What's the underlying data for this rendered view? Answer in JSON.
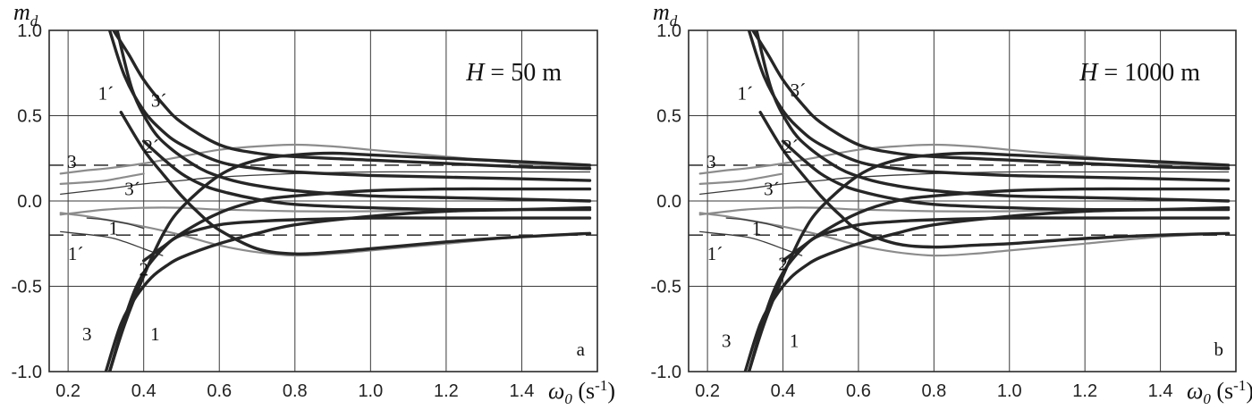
{
  "chart_data": [
    {
      "type": "line",
      "panel_label": "a",
      "annotation": {
        "symbol": "H",
        "text": " = 50 m"
      },
      "ylabel": {
        "main": "m",
        "sub": "d"
      },
      "xlabel": {
        "main": "ω",
        "sub": "0",
        "unit": " (s",
        "sup": "-1",
        "close": ")"
      },
      "xlim": [
        0.15,
        1.6
      ],
      "ylim": [
        -1.0,
        1.0
      ],
      "xticks": [
        "0.2",
        "0.4",
        "0.6",
        "0.8",
        "1.0",
        "1.2",
        "1.4"
      ],
      "yticks": [
        "1.0",
        "0.5",
        "0.0",
        "-0.5",
        "-1.0"
      ],
      "grid": true,
      "reference_lines": [
        0.21,
        -0.2
      ],
      "curve_labels": [
        {
          "text": "1´",
          "x": 0.3,
          "y": 0.63
        },
        {
          "text": "3´",
          "x": 0.44,
          "y": 0.59
        },
        {
          "text": "2´",
          "x": 0.42,
          "y": 0.32
        },
        {
          "text": "3",
          "x": 0.21,
          "y": 0.23
        },
        {
          "text": "3´",
          "x": 0.37,
          "y": 0.07
        },
        {
          "text": "1",
          "x": 0.32,
          "y": -0.16
        },
        {
          "text": "1´",
          "x": 0.22,
          "y": -0.31
        },
        {
          "text": "2",
          "x": 0.4,
          "y": -0.4
        },
        {
          "text": "3",
          "x": 0.25,
          "y": -0.78
        },
        {
          "text": "1",
          "x": 0.43,
          "y": -0.78
        }
      ],
      "series": [
        {
          "style": "thick",
          "x": [
            0.32,
            0.36,
            0.4,
            0.45,
            0.5,
            0.6,
            0.7,
            0.8,
            1.0,
            1.2,
            1.4,
            1.58
          ],
          "y": [
            1.0,
            0.86,
            0.71,
            0.57,
            0.46,
            0.33,
            0.28,
            0.26,
            0.24,
            0.22,
            0.2,
            0.19
          ]
        },
        {
          "style": "thick",
          "x": [
            0.31,
            0.35,
            0.4,
            0.45,
            0.5,
            0.6,
            0.7,
            0.8,
            1.0,
            1.2,
            1.4,
            1.58
          ],
          "y": [
            1.0,
            0.73,
            0.53,
            0.41,
            0.33,
            0.23,
            0.19,
            0.17,
            0.15,
            0.14,
            0.13,
            0.12
          ]
        },
        {
          "style": "thick",
          "x": [
            0.33,
            0.37,
            0.42,
            0.47,
            0.55,
            0.62,
            0.7,
            0.8,
            1.0,
            1.2,
            1.4,
            1.58
          ],
          "y": [
            1.0,
            0.65,
            0.43,
            0.31,
            0.19,
            0.13,
            0.09,
            0.06,
            0.03,
            0.02,
            0.01,
            0.0
          ]
        },
        {
          "style": "thick",
          "x": [
            0.31,
            0.35,
            0.4,
            0.45,
            0.5,
            0.6,
            0.7,
            0.8,
            0.9,
            1.0,
            1.2,
            1.4,
            1.58
          ],
          "y": [
            -1.0,
            -0.72,
            -0.44,
            -0.2,
            -0.04,
            0.15,
            0.24,
            0.27,
            0.28,
            0.27,
            0.25,
            0.23,
            0.21
          ]
        },
        {
          "style": "thick",
          "x": [
            0.31,
            0.36,
            0.4,
            0.45,
            0.5,
            0.6,
            0.7,
            0.8,
            1.0,
            1.2,
            1.4,
            1.58
          ],
          "y": [
            -1.0,
            -0.62,
            -0.42,
            -0.28,
            -0.19,
            -0.07,
            0.0,
            0.03,
            0.06,
            0.07,
            0.07,
            0.07
          ]
        },
        {
          "style": "thick",
          "x": [
            0.3,
            0.34,
            0.38,
            0.42,
            0.46,
            0.5,
            0.6,
            0.7,
            0.8,
            1.0,
            1.2,
            1.4,
            1.58
          ],
          "y": [
            -1.0,
            -0.72,
            -0.56,
            -0.45,
            -0.38,
            -0.33,
            -0.25,
            -0.19,
            -0.14,
            -0.09,
            -0.06,
            -0.05,
            -0.04
          ]
        },
        {
          "style": "thick",
          "x": [
            0.34,
            0.4,
            0.45,
            0.5,
            0.55,
            0.6,
            0.7,
            0.8,
            0.9,
            1.0,
            1.2,
            1.4,
            1.58
          ],
          "y": [
            0.52,
            0.3,
            0.16,
            0.03,
            -0.08,
            -0.17,
            -0.28,
            -0.31,
            -0.3,
            -0.28,
            -0.24,
            -0.21,
            -0.19
          ]
        },
        {
          "style": "thick",
          "x": [
            0.4,
            0.45,
            0.5,
            0.55,
            0.6,
            0.7,
            0.8,
            1.0,
            1.2,
            1.4,
            1.58
          ],
          "y": [
            0.35,
            0.25,
            0.16,
            0.1,
            0.06,
            0.01,
            -0.02,
            -0.04,
            -0.05,
            -0.05,
            -0.05
          ]
        },
        {
          "style": "thick",
          "x": [
            0.4,
            0.45,
            0.5,
            0.6,
            0.7,
            0.8,
            1.0,
            1.2,
            1.4,
            1.58
          ],
          "y": [
            -0.35,
            -0.27,
            -0.2,
            -0.14,
            -0.12,
            -0.11,
            -0.1,
            -0.1,
            -0.1,
            -0.1
          ]
        },
        {
          "style": "gray",
          "x": [
            0.18,
            0.25,
            0.3,
            0.4,
            0.5,
            0.6,
            0.7,
            0.8,
            0.9,
            1.0,
            1.2,
            1.4,
            1.58
          ],
          "y": [
            0.16,
            0.18,
            0.19,
            0.22,
            0.26,
            0.3,
            0.32,
            0.33,
            0.32,
            0.3,
            0.26,
            0.22,
            0.2
          ]
        },
        {
          "style": "gray",
          "x": [
            0.18,
            0.25,
            0.3,
            0.4,
            0.5,
            0.6,
            0.7,
            0.8,
            0.9,
            1.0,
            1.2,
            1.4,
            1.58
          ],
          "y": [
            -0.07,
            -0.09,
            -0.11,
            -0.15,
            -0.2,
            -0.26,
            -0.3,
            -0.32,
            -0.31,
            -0.29,
            -0.25,
            -0.21,
            -0.19
          ]
        },
        {
          "style": "gray",
          "x": [
            0.18,
            0.3,
            0.4,
            0.5,
            0.6,
            0.8,
            1.0,
            1.2,
            1.4,
            1.58
          ],
          "y": [
            -0.08,
            -0.05,
            -0.04,
            -0.04,
            -0.05,
            -0.06,
            -0.06,
            -0.05,
            -0.05,
            -0.05
          ]
        },
        {
          "style": "gray",
          "x": [
            0.18,
            0.25,
            0.3,
            0.35,
            0.4
          ],
          "y": [
            0.1,
            0.11,
            0.12,
            0.14,
            0.16
          ]
        },
        {
          "style": "thin",
          "x": [
            0.18,
            0.3,
            0.4,
            0.5,
            0.6,
            0.8,
            1.0,
            1.2,
            1.4,
            1.58
          ],
          "y": [
            0.04,
            0.07,
            0.1,
            0.12,
            0.14,
            0.16,
            0.17,
            0.17,
            0.17,
            0.17
          ]
        },
        {
          "style": "thin",
          "x": [
            0.18,
            0.3,
            0.35,
            0.4,
            0.45
          ],
          "y": [
            -0.18,
            -0.21,
            -0.24,
            -0.28,
            -0.32
          ]
        },
        {
          "style": "thin",
          "x": [
            0.25,
            0.3,
            0.35,
            0.4
          ],
          "y": [
            -0.1,
            -0.11,
            -0.13,
            -0.16
          ]
        }
      ]
    },
    {
      "type": "line",
      "panel_label": "b",
      "annotation": {
        "symbol": "H",
        "text": " = 1000 m"
      },
      "ylabel": {
        "main": "m",
        "sub": "d"
      },
      "xlabel": {
        "main": "ω",
        "sub": "0",
        "unit": " (s",
        "sup": "-1",
        "close": ")"
      },
      "xlim": [
        0.15,
        1.6
      ],
      "ylim": [
        -1.0,
        1.0
      ],
      "xticks": [
        "0.2",
        "0.4",
        "0.6",
        "0.8",
        "1.0",
        "1.2",
        "1.4"
      ],
      "yticks": [
        "1.0",
        "0.5",
        "0.0",
        "-0.5",
        "-1.0"
      ],
      "grid": true,
      "reference_lines": [
        0.21,
        -0.2
      ],
      "curve_labels": [
        {
          "text": "1´",
          "x": 0.3,
          "y": 0.63
        },
        {
          "text": "3´",
          "x": 0.44,
          "y": 0.65
        },
        {
          "text": "2´",
          "x": 0.42,
          "y": 0.32
        },
        {
          "text": "3",
          "x": 0.21,
          "y": 0.23
        },
        {
          "text": "3´",
          "x": 0.37,
          "y": 0.07
        },
        {
          "text": "1",
          "x": 0.33,
          "y": -0.16
        },
        {
          "text": "1´",
          "x": 0.22,
          "y": -0.31
        },
        {
          "text": "2",
          "x": 0.4,
          "y": -0.37
        },
        {
          "text": "3",
          "x": 0.25,
          "y": -0.82
        },
        {
          "text": "1",
          "x": 0.43,
          "y": -0.82
        }
      ],
      "series": [
        {
          "style": "thick",
          "x": [
            0.32,
            0.36,
            0.4,
            0.45,
            0.5,
            0.6,
            0.7,
            0.8,
            1.0,
            1.2,
            1.4,
            1.58
          ],
          "y": [
            1.0,
            0.86,
            0.71,
            0.57,
            0.46,
            0.33,
            0.28,
            0.26,
            0.24,
            0.22,
            0.2,
            0.19
          ]
        },
        {
          "style": "thick",
          "x": [
            0.31,
            0.35,
            0.4,
            0.45,
            0.5,
            0.6,
            0.7,
            0.8,
            1.0,
            1.2,
            1.4,
            1.58
          ],
          "y": [
            1.0,
            0.73,
            0.53,
            0.41,
            0.33,
            0.23,
            0.19,
            0.17,
            0.15,
            0.14,
            0.13,
            0.12
          ]
        },
        {
          "style": "thick",
          "x": [
            0.33,
            0.37,
            0.42,
            0.47,
            0.55,
            0.62,
            0.7,
            0.8,
            1.0,
            1.2,
            1.4,
            1.58
          ],
          "y": [
            1.0,
            0.65,
            0.43,
            0.31,
            0.19,
            0.13,
            0.09,
            0.06,
            0.03,
            0.02,
            0.01,
            0.0
          ]
        },
        {
          "style": "thick",
          "x": [
            0.31,
            0.35,
            0.4,
            0.45,
            0.5,
            0.6,
            0.7,
            0.8,
            0.9,
            1.0,
            1.2,
            1.4,
            1.58
          ],
          "y": [
            -1.0,
            -0.72,
            -0.44,
            -0.2,
            -0.04,
            0.15,
            0.24,
            0.27,
            0.28,
            0.27,
            0.25,
            0.23,
            0.21
          ]
        },
        {
          "style": "thick",
          "x": [
            0.31,
            0.36,
            0.4,
            0.45,
            0.5,
            0.6,
            0.7,
            0.8,
            1.0,
            1.2,
            1.4,
            1.58
          ],
          "y": [
            -1.0,
            -0.62,
            -0.42,
            -0.28,
            -0.19,
            -0.07,
            0.0,
            0.03,
            0.06,
            0.07,
            0.07,
            0.07
          ]
        },
        {
          "style": "thick",
          "x": [
            0.3,
            0.34,
            0.38,
            0.42,
            0.46,
            0.5,
            0.6,
            0.7,
            0.8,
            1.0,
            1.2,
            1.4,
            1.58
          ],
          "y": [
            -1.0,
            -0.72,
            -0.56,
            -0.45,
            -0.38,
            -0.33,
            -0.25,
            -0.19,
            -0.14,
            -0.09,
            -0.06,
            -0.05,
            -0.04
          ]
        },
        {
          "style": "thick",
          "x": [
            0.34,
            0.4,
            0.45,
            0.5,
            0.55,
            0.6,
            0.7,
            0.8,
            0.9,
            1.0,
            1.2,
            1.4,
            1.58
          ],
          "y": [
            0.52,
            0.3,
            0.16,
            0.03,
            -0.08,
            -0.17,
            -0.25,
            -0.27,
            -0.26,
            -0.25,
            -0.22,
            -0.2,
            -0.19
          ]
        },
        {
          "style": "thick",
          "x": [
            0.4,
            0.45,
            0.5,
            0.55,
            0.6,
            0.7,
            0.8,
            1.0,
            1.2,
            1.4,
            1.58
          ],
          "y": [
            0.35,
            0.25,
            0.16,
            0.1,
            0.06,
            0.01,
            -0.02,
            -0.04,
            -0.05,
            -0.05,
            -0.05
          ]
        },
        {
          "style": "thick",
          "x": [
            0.4,
            0.45,
            0.5,
            0.6,
            0.7,
            0.8,
            1.0,
            1.2,
            1.4,
            1.58
          ],
          "y": [
            -0.35,
            -0.27,
            -0.2,
            -0.14,
            -0.12,
            -0.11,
            -0.1,
            -0.1,
            -0.1,
            -0.1
          ]
        },
        {
          "style": "gray",
          "x": [
            0.18,
            0.25,
            0.3,
            0.4,
            0.5,
            0.6,
            0.7,
            0.8,
            0.9,
            1.0,
            1.2,
            1.4,
            1.58
          ],
          "y": [
            0.16,
            0.18,
            0.19,
            0.22,
            0.26,
            0.3,
            0.32,
            0.33,
            0.32,
            0.3,
            0.26,
            0.22,
            0.2
          ]
        },
        {
          "style": "gray",
          "x": [
            0.18,
            0.25,
            0.3,
            0.4,
            0.5,
            0.6,
            0.7,
            0.8,
            0.9,
            1.0,
            1.2,
            1.4,
            1.58
          ],
          "y": [
            -0.07,
            -0.09,
            -0.11,
            -0.15,
            -0.2,
            -0.26,
            -0.3,
            -0.32,
            -0.31,
            -0.29,
            -0.25,
            -0.21,
            -0.19
          ]
        },
        {
          "style": "gray",
          "x": [
            0.18,
            0.3,
            0.4,
            0.5,
            0.6,
            0.8,
            1.0,
            1.2,
            1.4,
            1.58
          ],
          "y": [
            -0.08,
            -0.05,
            -0.04,
            -0.04,
            -0.05,
            -0.06,
            -0.06,
            -0.05,
            -0.05,
            -0.05
          ]
        },
        {
          "style": "gray",
          "x": [
            0.18,
            0.25,
            0.3,
            0.35,
            0.4
          ],
          "y": [
            0.1,
            0.11,
            0.12,
            0.14,
            0.16
          ]
        },
        {
          "style": "thin",
          "x": [
            0.18,
            0.3,
            0.4,
            0.5,
            0.6,
            0.8,
            1.0,
            1.2,
            1.4,
            1.58
          ],
          "y": [
            0.04,
            0.07,
            0.1,
            0.12,
            0.14,
            0.16,
            0.17,
            0.17,
            0.17,
            0.17
          ]
        },
        {
          "style": "thin",
          "x": [
            0.18,
            0.3,
            0.35,
            0.4,
            0.45
          ],
          "y": [
            -0.18,
            -0.21,
            -0.24,
            -0.28,
            -0.32
          ]
        },
        {
          "style": "thin",
          "x": [
            0.25,
            0.3,
            0.35,
            0.4
          ],
          "y": [
            -0.1,
            -0.11,
            -0.13,
            -0.16
          ]
        }
      ]
    }
  ],
  "colors": {
    "thick": "#262626",
    "thin": "#3a3a3a",
    "gray": "#8c8c8c",
    "grid": "#3a3a3a",
    "dashed": "#3a3a3a"
  }
}
